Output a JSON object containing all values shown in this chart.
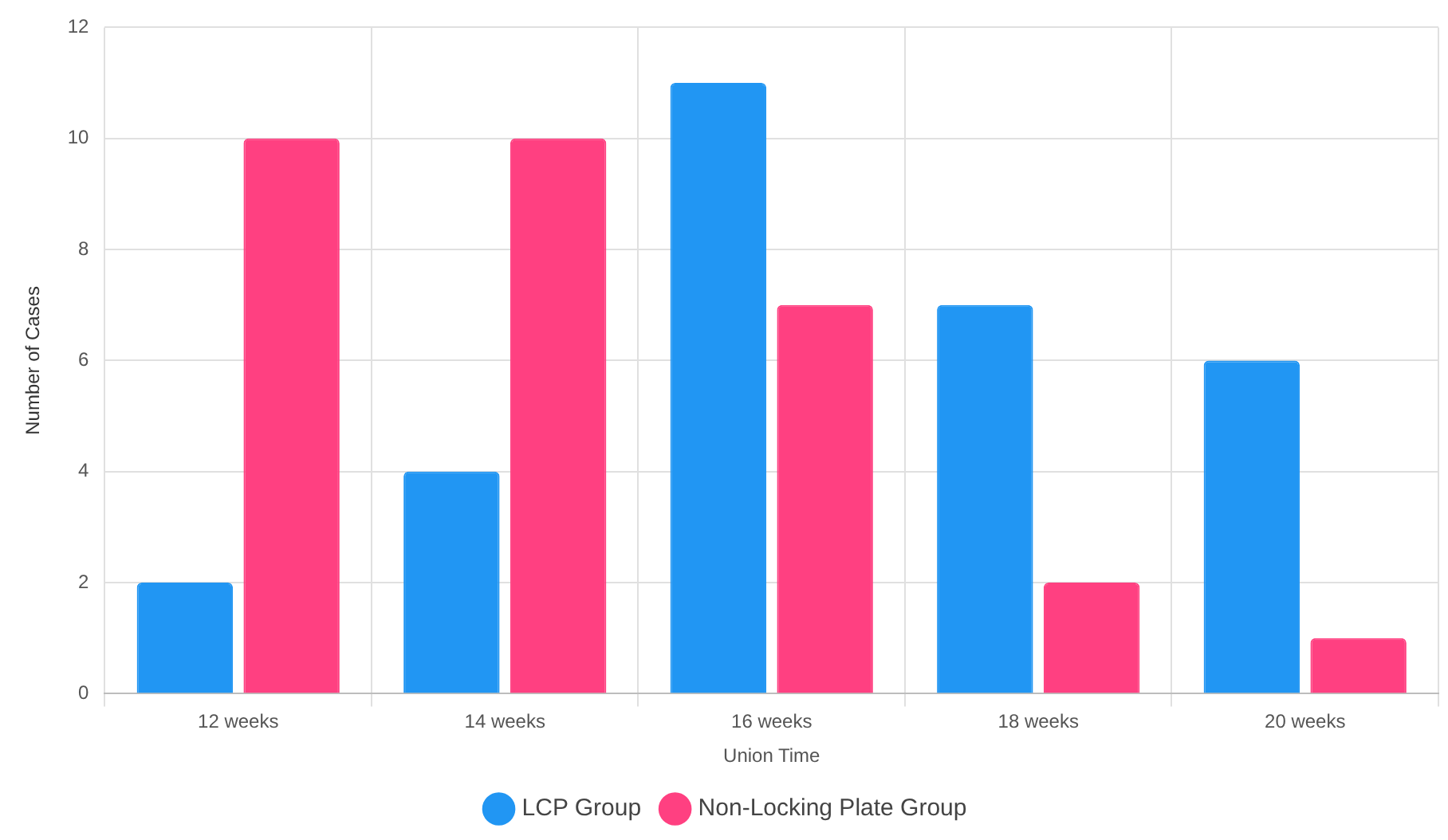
{
  "chart_data": {
    "type": "bar",
    "xlabel": "Union Time",
    "ylabel": "Number of Cases",
    "categories": [
      "12 weeks",
      "14 weeks",
      "16 weeks",
      "18 weeks",
      "20 weeks"
    ],
    "series": [
      {
        "name": "LCP Group",
        "color": "#2196f3",
        "values": [
          2,
          4,
          11,
          7,
          6
        ]
      },
      {
        "name": "Non-Locking Plate Group",
        "color": "#ff4081",
        "values": [
          10,
          10,
          7,
          2,
          1
        ]
      }
    ],
    "ylim": [
      0,
      12
    ],
    "yticks": [
      0,
      2,
      4,
      6,
      8,
      10,
      12
    ],
    "grid": true,
    "legend": "bottom"
  }
}
